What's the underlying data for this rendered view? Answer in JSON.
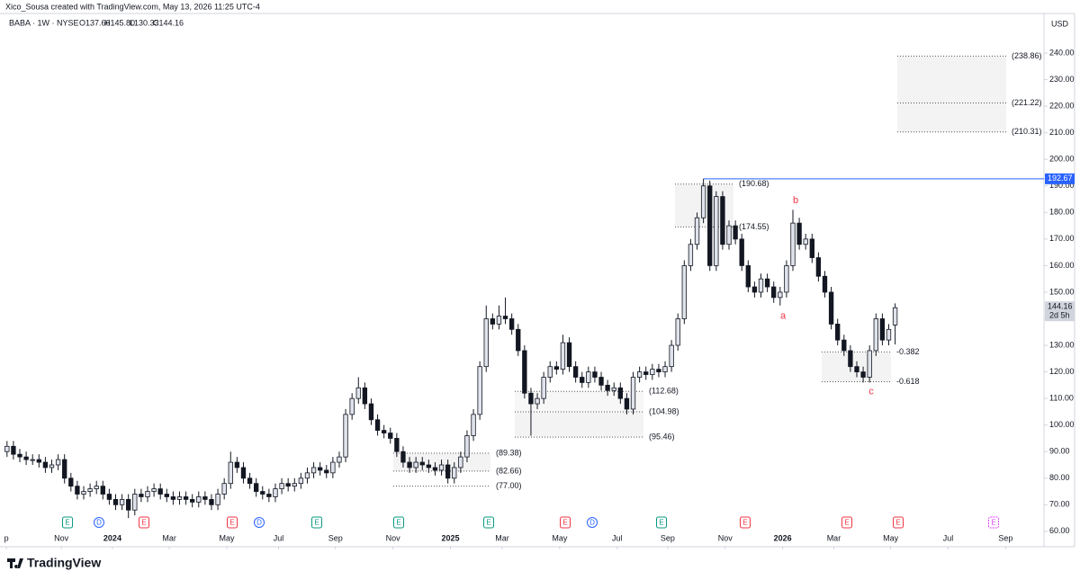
{
  "header": {
    "credit": "Xico_Sousa created with TradingView.com, May 13, 2026 11:25 UTC-4",
    "symbol": "BABA · 1W · NYSE",
    "ohlc": [
      "O137.66",
      "H145.80",
      "L130.33",
      "C144.16"
    ]
  },
  "currency": "USD",
  "brand": "TradingView",
  "chart_data": {
    "type": "candlestick",
    "categories": [
      null,
      null,
      null,
      null,
      null,
      null,
      null,
      null,
      null,
      null,
      null,
      null,
      null,
      null,
      null,
      null,
      null,
      null,
      null,
      null,
      null,
      null,
      null,
      null,
      null,
      null,
      null,
      null,
      null,
      null,
      null,
      null,
      null,
      null,
      null,
      null,
      null,
      null,
      null,
      null,
      null,
      null,
      null,
      null,
      null,
      null,
      null,
      null,
      null,
      null,
      null,
      null,
      null,
      null,
      null,
      null,
      null,
      null,
      null,
      null,
      null,
      null,
      null,
      null,
      null,
      null,
      null,
      null,
      null,
      null,
      null,
      null,
      null,
      null,
      null,
      null,
      null,
      null,
      null,
      null,
      null,
      null,
      null,
      null,
      null,
      null,
      null,
      null,
      null,
      null,
      null,
      null,
      null,
      null,
      null,
      null,
      null,
      null,
      null,
      null,
      null,
      null,
      null,
      null,
      null,
      null,
      null,
      null,
      null,
      null,
      null,
      null,
      null,
      null,
      null,
      null,
      null,
      null,
      null,
      null,
      null,
      null,
      null,
      null,
      null,
      null,
      null,
      null,
      null,
      null,
      null,
      null,
      null,
      null,
      null,
      null,
      null,
      null,
      null,
      null
    ],
    "open": [
      90,
      92,
      89,
      88,
      87,
      87,
      86,
      84,
      85,
      87,
      80,
      77,
      74,
      75,
      76,
      77,
      74,
      72,
      70,
      72,
      68,
      74,
      73,
      75,
      76,
      74,
      73,
      72,
      73,
      72,
      71,
      73,
      72,
      70,
      74,
      78,
      86,
      84,
      80,
      78,
      75,
      74,
      73,
      76,
      78,
      77,
      78,
      80,
      82,
      84,
      83,
      82,
      86,
      88,
      104,
      110,
      114,
      108,
      102,
      98,
      97,
      95,
      90,
      86,
      84,
      86,
      85,
      84,
      83,
      85,
      80,
      84,
      88,
      96,
      104,
      122,
      140,
      138,
      141,
      140,
      136,
      128,
      112,
      108,
      110,
      118,
      122,
      121,
      131,
      122,
      118,
      116,
      120,
      118,
      115,
      113,
      114,
      110,
      106,
      118,
      120,
      119,
      121,
      120,
      122,
      130,
      140,
      160,
      168,
      178,
      190,
      160,
      186,
      168,
      175,
      170,
      160,
      152,
      150,
      155,
      152,
      148,
      150,
      160,
      176,
      168,
      170,
      163,
      156,
      150,
      138,
      132,
      128,
      122,
      120,
      118,
      128,
      140,
      132,
      137.66
    ],
    "high": [
      94,
      94,
      91,
      90,
      89,
      89,
      88,
      87,
      89,
      89,
      82,
      79,
      77,
      78,
      79,
      79,
      76,
      74,
      74,
      74,
      76,
      76,
      77,
      78,
      78,
      76,
      75,
      75,
      75,
      74,
      75,
      75,
      74,
      76,
      80,
      90,
      88,
      86,
      82,
      80,
      77,
      76,
      78,
      80,
      80,
      80,
      82,
      84,
      86,
      86,
      85,
      88,
      90,
      106,
      112,
      118,
      116,
      110,
      104,
      100,
      99,
      97,
      92,
      88,
      88,
      88,
      87,
      86,
      87,
      87,
      86,
      90,
      98,
      106,
      124,
      145,
      142,
      145,
      148,
      142,
      138,
      130,
      114,
      112,
      120,
      124,
      124,
      134,
      133,
      124,
      120,
      122,
      122,
      120,
      117,
      116,
      116,
      112,
      120,
      122,
      122,
      123,
      123,
      124,
      132,
      142,
      162,
      170,
      180,
      192.67,
      192,
      188,
      188,
      177,
      177,
      172,
      162,
      154,
      157,
      157,
      154,
      152,
      162,
      181,
      178,
      172,
      172,
      165,
      158,
      152,
      140,
      134,
      130,
      124,
      122,
      130,
      142,
      142,
      138,
      145.8
    ],
    "low": [
      88,
      87,
      86,
      85,
      85,
      84,
      82,
      82,
      83,
      78,
      75,
      72,
      72,
      73,
      74,
      72,
      70,
      68,
      68,
      65,
      66,
      71,
      71,
      73,
      72,
      71,
      70,
      70,
      70,
      69,
      69,
      70,
      68,
      68,
      72,
      76,
      82,
      78,
      76,
      73,
      72,
      71,
      71,
      74,
      75,
      75,
      76,
      78,
      80,
      81,
      80,
      80,
      84,
      86,
      102,
      108,
      106,
      100,
      96,
      95,
      93,
      88,
      84,
      82,
      82,
      83,
      82,
      81,
      81,
      78,
      78,
      82,
      86,
      94,
      102,
      120,
      136,
      136,
      138,
      134,
      126,
      110,
      96,
      106,
      108,
      116,
      119,
      119,
      120,
      116,
      114,
      114,
      116,
      113,
      111,
      111,
      108,
      104,
      104,
      116,
      117,
      117,
      118,
      118,
      120,
      128,
      138,
      158,
      166,
      176,
      158,
      158,
      166,
      166,
      168,
      158,
      150,
      148,
      148,
      150,
      146,
      145,
      148,
      158,
      166,
      166,
      161,
      154,
      148,
      136,
      130,
      126,
      120,
      118,
      116,
      116,
      126,
      130,
      130,
      130.33
    ],
    "close": [
      92,
      89,
      88,
      87,
      87,
      86,
      84,
      85,
      87,
      80,
      77,
      74,
      75,
      76,
      77,
      74,
      72,
      70,
      72,
      68,
      74,
      73,
      75,
      76,
      74,
      73,
      72,
      73,
      72,
      71,
      73,
      72,
      70,
      74,
      78,
      86,
      84,
      80,
      78,
      75,
      74,
      73,
      76,
      78,
      77,
      78,
      80,
      82,
      84,
      83,
      82,
      86,
      88,
      104,
      110,
      114,
      108,
      102,
      98,
      97,
      95,
      90,
      86,
      84,
      86,
      85,
      84,
      83,
      85,
      80,
      84,
      88,
      96,
      104,
      122,
      140,
      138,
      141,
      140,
      136,
      128,
      112,
      108,
      110,
      118,
      122,
      121,
      131,
      122,
      118,
      116,
      120,
      118,
      115,
      113,
      114,
      110,
      106,
      118,
      120,
      119,
      121,
      120,
      122,
      130,
      140,
      160,
      168,
      178,
      190,
      160,
      186,
      168,
      175,
      170,
      160,
      152,
      150,
      155,
      152,
      148,
      150,
      160,
      176,
      168,
      170,
      163,
      156,
      150,
      138,
      132,
      128,
      122,
      120,
      118,
      128,
      140,
      132,
      136,
      144.16
    ],
    "up_color": "#e0e3eb",
    "down_color": "#131722",
    "wick_color": "#131722",
    "xlim": [
      -1.1,
      162.3
    ],
    "xticks": [
      {
        "value": -0.1,
        "label": "p"
      },
      {
        "value": 8.5,
        "label": "Nov"
      },
      {
        "value": 16.5,
        "label": "2024"
      },
      {
        "value": 25.4,
        "label": "Mar"
      },
      {
        "value": 34.4,
        "label": "May"
      },
      {
        "value": 42.5,
        "label": "Jul"
      },
      {
        "value": 51.4,
        "label": "Sep"
      },
      {
        "value": 60.4,
        "label": "Nov"
      },
      {
        "value": 69.4,
        "label": "2025"
      },
      {
        "value": 77.5,
        "label": "Mar"
      },
      {
        "value": 86.5,
        "label": "May"
      },
      {
        "value": 95.5,
        "label": "Jul"
      },
      {
        "value": 103.4,
        "label": "Sep"
      },
      {
        "value": 112.4,
        "label": "Nov"
      },
      {
        "value": 121.4,
        "label": "2026"
      },
      {
        "value": 129.4,
        "label": "Mar"
      },
      {
        "value": 138.3,
        "label": "May"
      },
      {
        "value": 147.3,
        "label": "Jul"
      },
      {
        "value": 156.3,
        "label": "Sep"
      }
    ],
    "ylim": [
      54.2,
      254.9
    ],
    "yticks": [
      {
        "value": 60,
        "label": "60.00"
      },
      {
        "value": 70,
        "label": "70.00"
      },
      {
        "value": 80,
        "label": "80.00"
      },
      {
        "value": 90,
        "label": "90.00"
      },
      {
        "value": 100,
        "label": "100.00"
      },
      {
        "value": 110,
        "label": "110.00"
      },
      {
        "value": 120,
        "label": "120.00"
      },
      {
        "value": 130,
        "label": "130.00"
      },
      {
        "value": 140,
        "label": "140.00"
      },
      {
        "value": 150,
        "label": "150.00"
      },
      {
        "value": 160,
        "label": "160.00"
      },
      {
        "value": 170,
        "label": "170.00"
      },
      {
        "value": 180,
        "label": "180.00"
      },
      {
        "value": 190,
        "label": "190.00"
      },
      {
        "value": 200,
        "label": "200.00"
      },
      {
        "value": 210,
        "label": "210.00"
      },
      {
        "value": 220,
        "label": "220.00"
      },
      {
        "value": 230,
        "label": "230.00"
      },
      {
        "value": 240,
        "label": "240.00"
      }
    ],
    "last_price": {
      "value": 144.16,
      "label": "144.16",
      "countdown": "2d 5h"
    },
    "high_line": {
      "value": 192.67,
      "label": "192.67",
      "color": "#2962ff"
    },
    "zones": [
      {
        "levels": [
          {
            "value": 238.86,
            "label": "(238.86)"
          },
          {
            "value": 221.22,
            "label": "(221.22)"
          },
          {
            "value": 210.31,
            "label": "(210.31)"
          }
        ]
      },
      {
        "levels": [
          {
            "value": 190.68,
            "label": "(190.68)"
          },
          {
            "value": 174.55,
            "label": "(174.55)"
          }
        ]
      },
      {
        "levels": [
          {
            "value": 112.68,
            "label": "(112.68)"
          },
          {
            "value": 104.98,
            "label": "(104.98)"
          },
          {
            "value": 95.46,
            "label": "(95.46)"
          }
        ]
      },
      {
        "levels": [
          {
            "value": 89.38,
            "label": "(89.38)"
          },
          {
            "value": 82.66,
            "label": "(82.66)"
          },
          {
            "value": 77.0,
            "label": "(77.00)"
          }
        ]
      },
      {
        "levels": [
          {
            "value": 127.5,
            "label": "-0.382"
          },
          {
            "value": 116.3,
            "label": "-0.618"
          }
        ]
      }
    ],
    "waves": [
      {
        "label": "b",
        "value": 184.5
      },
      {
        "label": "a",
        "value": 141
      },
      {
        "label": "c",
        "value": 112.5
      }
    ],
    "wave_color": "#f23645",
    "events": [
      {
        "label": "E",
        "color": "#089981"
      },
      {
        "label": "D",
        "color": "#2962ff"
      },
      {
        "label": "E",
        "color": "#f23645"
      },
      {
        "label": "E",
        "color": "#f23645"
      },
      {
        "label": "D",
        "color": "#2962ff"
      },
      {
        "label": "E",
        "color": "#089981"
      },
      {
        "label": "E",
        "color": "#089981"
      },
      {
        "label": "E",
        "color": "#089981"
      },
      {
        "label": "E",
        "color": "#f23645"
      },
      {
        "label": "D",
        "color": "#2962ff"
      },
      {
        "label": "E",
        "color": "#089981"
      },
      {
        "label": "E",
        "color": "#f23645"
      },
      {
        "label": "E",
        "color": "#f23645"
      },
      {
        "label": "E",
        "color": "#f23645"
      },
      {
        "label": "E",
        "color": "#e040fb"
      }
    ]
  }
}
